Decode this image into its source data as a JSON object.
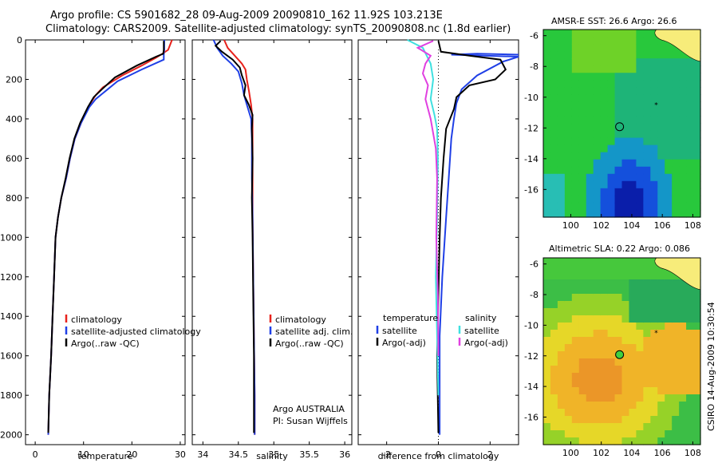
{
  "title_line1": "Argo profile: CS 5901682_28 09-Aug-2009 20090810_162 11.92S 103.213E",
  "title_line2": "Climatology: CARS2009. Satellite-adjusted climatology: synTS_20090808.nc (1.8d earlier)",
  "side_label": "CSIRO 14-Aug-2009 10:30:54",
  "colors": {
    "climatology": "#e8221c",
    "satellite": "#1f3fe6",
    "argo": "#000000",
    "satellite_diff": "#3fe0e0",
    "argo_diff": "#e040e0"
  },
  "chart_data": [
    {
      "type": "line",
      "xlabel": "temperature",
      "ylabel": "",
      "xlim": [
        -2,
        31
      ],
      "ylim": [
        2050,
        0
      ],
      "xticks": [
        "0",
        "10",
        "20",
        "30"
      ],
      "xtick_values": [
        0,
        10,
        20,
        30
      ],
      "yticks": [
        "0",
        "200",
        "400",
        "600",
        "800",
        "1000",
        "1200",
        "1400",
        "1600",
        "1800",
        "2000"
      ],
      "ytick_values": [
        0,
        200,
        400,
        600,
        800,
        1000,
        1200,
        1400,
        1600,
        1800,
        2000
      ],
      "legend": [
        "climatology",
        "satellite-adjusted climatology",
        "Argo(..raw -QC)"
      ],
      "series": [
        {
          "name": "climatology",
          "color": "#e8221c",
          "x": [
            28.3,
            27.5,
            26.3,
            25,
            22,
            18,
            14,
            12.5,
            11.2,
            9.5,
            8.2,
            7.2,
            6.4,
            5.4,
            4.7,
            4.2,
            3.9,
            3.6,
            3.3,
            2.9,
            2.7
          ],
          "y": [
            0,
            50,
            70,
            90,
            130,
            180,
            240,
            280,
            330,
            420,
            500,
            600,
            700,
            800,
            900,
            1000,
            1200,
            1400,
            1600,
            1800,
            2000
          ]
        },
        {
          "name": "satellite-adjusted climatology",
          "color": "#1f3fe6",
          "x": [
            26.7,
            26.7,
            26.6,
            26.6,
            22,
            17,
            14.5,
            12.5,
            11.2,
            9.5,
            8.2,
            7.2,
            6.4,
            5.4,
            4.7,
            4.2,
            3.9,
            3.6,
            3.3,
            2.9,
            2.7
          ],
          "y": [
            0,
            50,
            70,
            100,
            150,
            210,
            260,
            300,
            340,
            420,
            500,
            600,
            700,
            800,
            900,
            1000,
            1200,
            1400,
            1600,
            1800,
            2000
          ]
        },
        {
          "name": "Argo(..raw -QC)",
          "color": "#000000",
          "x": [
            26.6,
            26.6,
            26.5,
            25,
            21,
            16.5,
            13.8,
            12.1,
            10.9,
            9.3,
            8.1,
            7.1,
            6.3,
            5.4,
            4.7,
            4.2,
            3.9,
            3.6,
            3.3,
            2.9,
            2.7
          ],
          "y": [
            5,
            50,
            70,
            85,
            130,
            190,
            250,
            290,
            340,
            420,
            500,
            600,
            700,
            800,
            900,
            1000,
            1200,
            1400,
            1600,
            1800,
            1990
          ]
        }
      ]
    },
    {
      "type": "line",
      "xlabel": "salinity",
      "xlim": [
        33.85,
        36.1
      ],
      "ylim": [
        2050,
        0
      ],
      "xticks": [
        "34",
        "34.5",
        "35",
        "35.5",
        "36"
      ],
      "xtick_values": [
        34,
        34.5,
        35,
        35.5,
        36
      ],
      "legend": [
        "climatology",
        "satellite adj. clim.",
        "Argo(..raw -QC)"
      ],
      "annotation": [
        "Argo AUSTRALIA",
        "PI: Susan Wijffels"
      ],
      "series": [
        {
          "name": "climatology",
          "color": "#e8221c",
          "x": [
            34.3,
            34.35,
            34.45,
            34.55,
            34.6,
            34.62,
            34.65,
            34.68,
            34.7,
            34.7,
            34.7,
            34.7,
            34.71,
            34.72,
            34.73,
            34.73
          ],
          "y": [
            0,
            40,
            80,
            120,
            150,
            200,
            260,
            330,
            400,
            500,
            700,
            900,
            1200,
            1500,
            1800,
            2000
          ]
        },
        {
          "name": "satellite adj. clim.",
          "color": "#1f3fe6",
          "x": [
            34.15,
            34.2,
            34.28,
            34.4,
            34.5,
            34.55,
            34.58,
            34.63,
            34.68,
            34.69,
            34.69,
            34.7,
            34.71,
            34.72,
            34.73,
            34.73
          ],
          "y": [
            0,
            40,
            80,
            120,
            160,
            220,
            280,
            340,
            400,
            500,
            700,
            900,
            1200,
            1500,
            1800,
            2000
          ]
        },
        {
          "name": "Argo(..raw -QC)",
          "color": "#000000",
          "x": [
            34.25,
            34.18,
            34.27,
            34.42,
            34.52,
            34.55,
            34.6,
            34.58,
            34.65,
            34.7,
            34.69,
            34.7,
            34.69,
            34.7,
            34.71,
            34.72,
            34.72
          ],
          "y": [
            5,
            30,
            60,
            100,
            140,
            180,
            230,
            280,
            330,
            380,
            450,
            600,
            800,
            1000,
            1300,
            1600,
            1990
          ]
        }
      ]
    },
    {
      "type": "line",
      "xlabel": "difference from climatology",
      "xlim": [
        -3.1,
        3.1
      ],
      "ylim": [
        2050,
        0
      ],
      "xticks": [
        "-2",
        "0",
        "2"
      ],
      "xtick_values": [
        -2,
        0,
        2
      ],
      "legend_left": {
        "title": "temperature",
        "items": [
          "satellite",
          "Argo(-adj)"
        ]
      },
      "legend_right": {
        "title": "salinity",
        "items": [
          "satellite",
          "Argo(-adj)"
        ]
      },
      "series": [
        {
          "name": "temperature satellite",
          "color": "#1f3fe6",
          "x": [
            3.2,
            1.5,
            0.5,
            3.2,
            2.5,
            1.5,
            0.9,
            0.7,
            0.6,
            0.5,
            0.4,
            0.3,
            0.15,
            0.05,
            0.05,
            0.05
          ],
          "y": [
            75,
            70,
            75,
            85,
            110,
            180,
            250,
            320,
            400,
            500,
            700,
            900,
            1200,
            1500,
            1800,
            2000
          ]
        },
        {
          "name": "temperature Argo(-adj)",
          "color": "#000000",
          "x": [
            0.0,
            0.1,
            1.2,
            2.4,
            2.6,
            2.2,
            1.2,
            0.7,
            0.6,
            0.3,
            0.2,
            0.1,
            0.05,
            0.0,
            -0.05,
            0.0
          ],
          "y": [
            5,
            60,
            80,
            100,
            150,
            200,
            230,
            290,
            350,
            450,
            600,
            800,
            1000,
            1300,
            1600,
            1990
          ]
        },
        {
          "name": "salinity satellite",
          "color": "#3fe0e0",
          "x": [
            -1.2,
            -0.6,
            -0.3,
            -0.2,
            -0.3,
            -0.15,
            -0.05,
            -0.02,
            -0.05,
            -0.1,
            -0.05,
            0.0
          ],
          "y": [
            0,
            40,
            120,
            200,
            300,
            380,
            450,
            600,
            900,
            1200,
            1500,
            1800
          ]
        },
        {
          "name": "salinity Argo(-adj)",
          "color": "#e040e0",
          "x": [
            -0.2,
            -0.8,
            -0.3,
            -0.5,
            -0.6,
            -0.4,
            -0.5,
            -0.3,
            -0.1,
            -0.05,
            -0.08,
            -0.02,
            0.0
          ],
          "y": [
            5,
            40,
            80,
            120,
            170,
            230,
            300,
            400,
            550,
            700,
            1000,
            1300,
            1600
          ]
        }
      ]
    },
    {
      "type": "heatmap",
      "title": "AMSR-E SST: 26.6 Argo: 26.6",
      "xlim": [
        98.2,
        108.5
      ],
      "ylim": [
        -17.8,
        -5.6
      ],
      "xticks": [
        "100",
        "102",
        "104",
        "106",
        "108"
      ],
      "xtick_values": [
        100,
        102,
        104,
        106,
        108
      ],
      "yticks": [
        "-6",
        "-8",
        "-10",
        "-12",
        "-14",
        "-16"
      ],
      "ytick_values": [
        -6,
        -8,
        -10,
        -12,
        -14,
        -16
      ],
      "profile_marker": [
        103.2,
        -11.92
      ]
    },
    {
      "type": "heatmap",
      "title": "Altimetric SLA: 0.22 Argo: 0.086",
      "xlim": [
        98.2,
        108.5
      ],
      "ylim": [
        -17.8,
        -5.6
      ],
      "xticks": [
        "100",
        "102",
        "104",
        "106",
        "108"
      ],
      "xtick_values": [
        100,
        102,
        104,
        106,
        108
      ],
      "yticks": [
        "-6",
        "-8",
        "-10",
        "-12",
        "-14",
        "-16"
      ],
      "ytick_values": [
        -6,
        -8,
        -10,
        -12,
        -14,
        -16
      ],
      "profile_marker": [
        103.2,
        -11.92
      ]
    }
  ]
}
